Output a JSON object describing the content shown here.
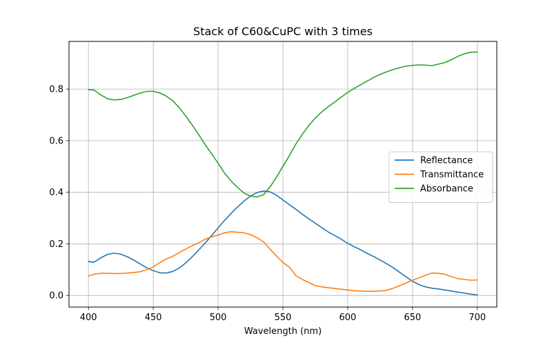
{
  "chart_data": {
    "type": "line",
    "title": "Stack of C60&CuPC with 3 times",
    "xlabel": "Wavelength (nm)",
    "ylabel": "",
    "xlim": [
      385,
      715
    ],
    "ylim": [
      -0.045,
      0.985
    ],
    "xticks": [
      400,
      450,
      500,
      550,
      600,
      650,
      700
    ],
    "yticks": [
      0.0,
      0.2,
      0.4,
      0.6,
      0.8
    ],
    "ytick_labels": [
      "0.0",
      "0.2",
      "0.4",
      "0.6",
      "0.8"
    ],
    "grid": true,
    "legend_position": "center-right",
    "series": [
      {
        "name": "Reflectance",
        "color": "#1f77b4",
        "points": [
          [
            400,
            0.132
          ],
          [
            404,
            0.128
          ],
          [
            410,
            0.147
          ],
          [
            415,
            0.16
          ],
          [
            420,
            0.164
          ],
          [
            425,
            0.16
          ],
          [
            430,
            0.15
          ],
          [
            435,
            0.137
          ],
          [
            440,
            0.122
          ],
          [
            445,
            0.107
          ],
          [
            450,
            0.096
          ],
          [
            455,
            0.088
          ],
          [
            460,
            0.087
          ],
          [
            465,
            0.093
          ],
          [
            470,
            0.106
          ],
          [
            475,
            0.126
          ],
          [
            480,
            0.15
          ],
          [
            485,
            0.176
          ],
          [
            490,
            0.203
          ],
          [
            495,
            0.232
          ],
          [
            500,
            0.262
          ],
          [
            505,
            0.291
          ],
          [
            510,
            0.318
          ],
          [
            515,
            0.343
          ],
          [
            520,
            0.366
          ],
          [
            525,
            0.385
          ],
          [
            530,
            0.399
          ],
          [
            535,
            0.405
          ],
          [
            540,
            0.402
          ],
          [
            545,
            0.389
          ],
          [
            550,
            0.37
          ],
          [
            555,
            0.352
          ],
          [
            560,
            0.334
          ],
          [
            565,
            0.315
          ],
          [
            570,
            0.297
          ],
          [
            575,
            0.28
          ],
          [
            580,
            0.263
          ],
          [
            585,
            0.246
          ],
          [
            590,
            0.232
          ],
          [
            595,
            0.218
          ],
          [
            600,
            0.202
          ],
          [
            605,
            0.189
          ],
          [
            610,
            0.177
          ],
          [
            615,
            0.163
          ],
          [
            620,
            0.151
          ],
          [
            625,
            0.137
          ],
          [
            630,
            0.123
          ],
          [
            635,
            0.108
          ],
          [
            640,
            0.09
          ],
          [
            645,
            0.072
          ],
          [
            650,
            0.055
          ],
          [
            655,
            0.042
          ],
          [
            660,
            0.033
          ],
          [
            665,
            0.028
          ],
          [
            670,
            0.025
          ],
          [
            675,
            0.021
          ],
          [
            680,
            0.017
          ],
          [
            685,
            0.013
          ],
          [
            690,
            0.009
          ],
          [
            695,
            0.005
          ],
          [
            700,
            0.002
          ]
        ]
      },
      {
        "name": "Transmittance",
        "color": "#ff7f0e",
        "points": [
          [
            400,
            0.075
          ],
          [
            405,
            0.083
          ],
          [
            410,
            0.086
          ],
          [
            415,
            0.086
          ],
          [
            420,
            0.085
          ],
          [
            425,
            0.085
          ],
          [
            430,
            0.087
          ],
          [
            435,
            0.089
          ],
          [
            440,
            0.092
          ],
          [
            445,
            0.1
          ],
          [
            450,
            0.111
          ],
          [
            455,
            0.127
          ],
          [
            460,
            0.141
          ],
          [
            465,
            0.152
          ],
          [
            470,
            0.166
          ],
          [
            475,
            0.18
          ],
          [
            480,
            0.193
          ],
          [
            485,
            0.204
          ],
          [
            490,
            0.218
          ],
          [
            495,
            0.227
          ],
          [
            500,
            0.234
          ],
          [
            505,
            0.243
          ],
          [
            510,
            0.247
          ],
          [
            515,
            0.245
          ],
          [
            520,
            0.243
          ],
          [
            525,
            0.236
          ],
          [
            530,
            0.224
          ],
          [
            535,
            0.208
          ],
          [
            540,
            0.18
          ],
          [
            545,
            0.153
          ],
          [
            550,
            0.128
          ],
          [
            555,
            0.11
          ],
          [
            560,
            0.077
          ],
          [
            565,
            0.062
          ],
          [
            570,
            0.05
          ],
          [
            575,
            0.038
          ],
          [
            580,
            0.033
          ],
          [
            585,
            0.03
          ],
          [
            590,
            0.027
          ],
          [
            595,
            0.024
          ],
          [
            600,
            0.021
          ],
          [
            605,
            0.018
          ],
          [
            610,
            0.017
          ],
          [
            615,
            0.016
          ],
          [
            620,
            0.016
          ],
          [
            625,
            0.017
          ],
          [
            630,
            0.02
          ],
          [
            635,
            0.028
          ],
          [
            640,
            0.038
          ],
          [
            645,
            0.048
          ],
          [
            650,
            0.059
          ],
          [
            655,
            0.068
          ],
          [
            660,
            0.078
          ],
          [
            665,
            0.087
          ],
          [
            670,
            0.086
          ],
          [
            675,
            0.082
          ],
          [
            680,
            0.073
          ],
          [
            685,
            0.065
          ],
          [
            690,
            0.062
          ],
          [
            695,
            0.059
          ],
          [
            700,
            0.06
          ]
        ]
      },
      {
        "name": "Absorbance",
        "color": "#2ca02c",
        "points": [
          [
            400,
            0.798
          ],
          [
            404,
            0.797
          ],
          [
            410,
            0.776
          ],
          [
            415,
            0.762
          ],
          [
            420,
            0.758
          ],
          [
            425,
            0.76
          ],
          [
            430,
            0.767
          ],
          [
            435,
            0.776
          ],
          [
            440,
            0.785
          ],
          [
            445,
            0.791
          ],
          [
            450,
            0.792
          ],
          [
            455,
            0.785
          ],
          [
            460,
            0.773
          ],
          [
            465,
            0.755
          ],
          [
            470,
            0.728
          ],
          [
            475,
            0.696
          ],
          [
            480,
            0.661
          ],
          [
            485,
            0.624
          ],
          [
            490,
            0.585
          ],
          [
            495,
            0.549
          ],
          [
            500,
            0.513
          ],
          [
            505,
            0.474
          ],
          [
            510,
            0.444
          ],
          [
            515,
            0.419
          ],
          [
            520,
            0.397
          ],
          [
            525,
            0.385
          ],
          [
            530,
            0.382
          ],
          [
            535,
            0.39
          ],
          [
            540,
            0.42
          ],
          [
            545,
            0.458
          ],
          [
            550,
            0.501
          ],
          [
            555,
            0.542
          ],
          [
            560,
            0.587
          ],
          [
            565,
            0.625
          ],
          [
            570,
            0.659
          ],
          [
            575,
            0.688
          ],
          [
            580,
            0.712
          ],
          [
            585,
            0.732
          ],
          [
            590,
            0.75
          ],
          [
            595,
            0.769
          ],
          [
            600,
            0.787
          ],
          [
            605,
            0.803
          ],
          [
            610,
            0.817
          ],
          [
            615,
            0.831
          ],
          [
            620,
            0.845
          ],
          [
            625,
            0.857
          ],
          [
            630,
            0.867
          ],
          [
            635,
            0.876
          ],
          [
            640,
            0.883
          ],
          [
            645,
            0.889
          ],
          [
            650,
            0.892
          ],
          [
            655,
            0.894
          ],
          [
            660,
            0.893
          ],
          [
            665,
            0.891
          ],
          [
            670,
            0.897
          ],
          [
            675,
            0.903
          ],
          [
            680,
            0.914
          ],
          [
            685,
            0.927
          ],
          [
            690,
            0.937
          ],
          [
            695,
            0.943
          ],
          [
            700,
            0.944
          ]
        ]
      }
    ]
  }
}
